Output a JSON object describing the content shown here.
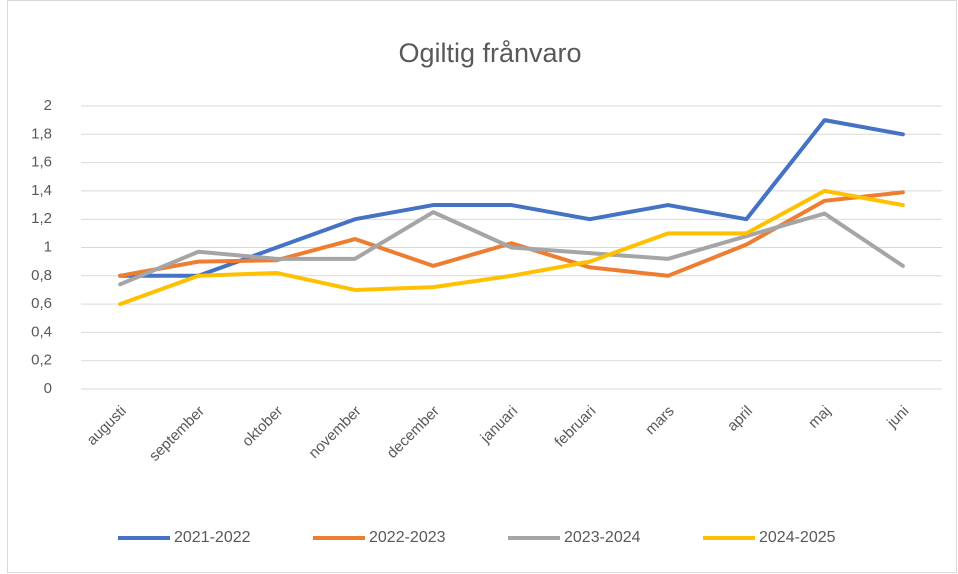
{
  "chart_data": {
    "type": "line",
    "title": "Ogiltig frånvaro",
    "categories": [
      "augusti",
      "september",
      "oktober",
      "november",
      "december",
      "januari",
      "februari",
      "mars",
      "april",
      "maj",
      "juni"
    ],
    "series": [
      {
        "name": "2021-2022",
        "color": "#4472c4",
        "values": [
          0.8,
          0.8,
          1.0,
          1.2,
          1.3,
          1.3,
          1.2,
          1.3,
          1.2,
          1.9,
          1.8
        ]
      },
      {
        "name": "2022-2023",
        "color": "#ed7d31",
        "values": [
          0.8,
          0.9,
          0.91,
          1.06,
          0.87,
          1.03,
          0.86,
          0.8,
          1.02,
          1.33,
          1.39
        ]
      },
      {
        "name": "2023-2024",
        "color": "#a5a5a5",
        "values": [
          0.74,
          0.97,
          0.92,
          0.92,
          1.25,
          1.0,
          0.96,
          0.92,
          1.08,
          1.24,
          0.87
        ]
      },
      {
        "name": "2024-2025",
        "color": "#ffc000",
        "values": [
          0.6,
          0.8,
          0.82,
          0.7,
          0.72,
          0.8,
          0.9,
          1.1,
          1.1,
          1.4,
          1.3
        ]
      }
    ],
    "ylim": [
      0,
      2
    ],
    "yticks": [
      0,
      {
        "value": 0.2,
        "label": "0,2"
      },
      {
        "value": 0.4,
        "label": "0,4"
      },
      {
        "value": 0.6,
        "label": "0,6"
      },
      {
        "value": 0.8,
        "label": "0,8"
      },
      1,
      {
        "value": 1.2,
        "label": "1,2"
      },
      {
        "value": 1.4,
        "label": "1,4"
      },
      {
        "value": 1.6,
        "label": "1,6"
      },
      {
        "value": 1.8,
        "label": "1,8"
      },
      2
    ],
    "grid": true,
    "legend": "bottom"
  }
}
